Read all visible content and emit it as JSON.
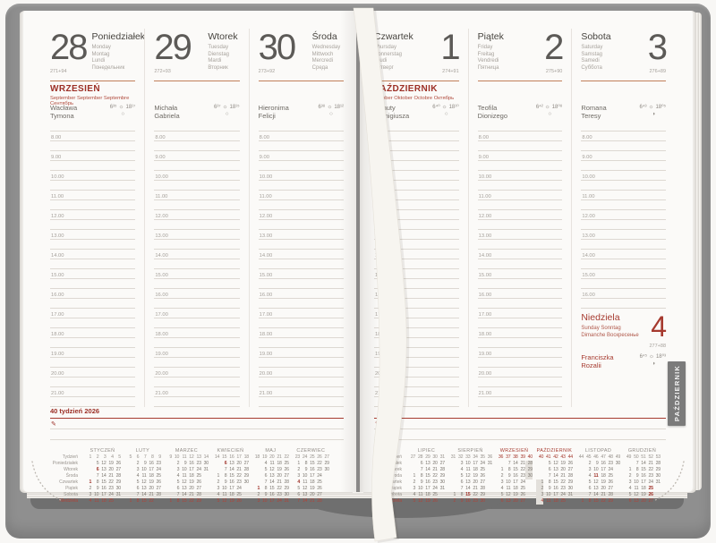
{
  "colors": {
    "accent_red": "#a63a2f",
    "header_red": "#9c2f26",
    "orange_rule": "#c2805a",
    "tab_gray": "#7b7b7b",
    "highlight": "#e3e0db"
  },
  "sun_icon": "☼",
  "pen_icon": "✎",
  "hours_full": [
    "8.00",
    "9.00",
    "10.00",
    "11.00",
    "12.00",
    "13.00",
    "14.00",
    "15.00",
    "16.00",
    "17.00",
    "18.00",
    "19.00",
    "20.00",
    "21.00"
  ],
  "hours_sat": [
    "8.00",
    "9.00",
    "10.00",
    "11.00",
    "12.00",
    "13.00",
    "14.00",
    "15.00",
    "16.00"
  ],
  "side_tab": {
    "label": "PAŹDZIERNIK"
  },
  "left_page": {
    "month_header": {
      "title": "WRZESIEŃ",
      "subtitle": "September  September  Septembre  Сентябрь"
    },
    "week_label": "40 tydzień 2026",
    "columns": [
      {
        "day": "28",
        "name": "Poniedziałek",
        "langs": [
          "Monday",
          "Montag",
          "Lundi",
          "Понедельник"
        ],
        "ordinal": "271+94",
        "namedays": [
          "Wacława",
          "Tymona"
        ],
        "sunrise": "6³⁵",
        "sunset": "18¹⁷",
        "moon": "○"
      },
      {
        "day": "29",
        "name": "Wtorek",
        "langs": [
          "Tuesday",
          "Dienstag",
          "Mardi",
          "Вторник"
        ],
        "ordinal": "272+93",
        "namedays": [
          "Michała",
          "Gabriela"
        ],
        "sunrise": "6³⁷",
        "sunset": "18¹⁵",
        "moon": "○"
      },
      {
        "day": "30",
        "name": "Środa",
        "langs": [
          "Wednesday",
          "Mittwoch",
          "Mercredi",
          "Среда"
        ],
        "ordinal": "273+92",
        "namedays": [
          "Hieronima",
          "Felicji"
        ],
        "sunrise": "6³⁸",
        "sunset": "18¹²",
        "moon": "○"
      }
    ]
  },
  "right_page": {
    "month_header": {
      "title": "PAŹDZIERNIK",
      "subtitle": "October  Oktober  Octobre  Октябрь"
    },
    "columns": [
      {
        "day": "1",
        "name": "Czwartek",
        "langs": [
          "Thursday",
          "Donnerstag",
          "Jeudi",
          "Четверг"
        ],
        "ordinal": "274+91",
        "namedays": [
          "Danuty",
          "Remigiusza"
        ],
        "sunrise": "6⁴⁰",
        "sunset": "18¹⁰",
        "moon": "○"
      },
      {
        "day": "2",
        "name": "Piątek",
        "langs": [
          "Friday",
          "Freitag",
          "Vendredi",
          "Пятница"
        ],
        "ordinal": "275+90",
        "namedays": [
          "Teofila",
          "Dionizego"
        ],
        "sunrise": "6⁴²",
        "sunset": "18⁰⁸",
        "moon": "○"
      },
      {
        "day": "3",
        "name": "Sobota",
        "langs": [
          "Saturday",
          "Samstag",
          "Samedi",
          "Суббота"
        ],
        "ordinal": "276+89",
        "namedays": [
          "Romana",
          "Teresy"
        ],
        "sunrise": "6⁴³",
        "sunset": "18⁰⁵",
        "moon": "◑"
      }
    ],
    "sunday": {
      "day": "4",
      "name": "Niedziela",
      "langs": [
        "Sunday Sonntag",
        "Dimanche Воскресенье"
      ],
      "ordinal": "277+88",
      "namedays": [
        "Franciszka",
        "Rozalii"
      ],
      "sunrise": "6⁴⁵",
      "sunset": "18⁰³",
      "moon": "◑"
    }
  },
  "mini_calendar": {
    "row_labels": [
      "Tydzień",
      "Poniedziałek",
      "Wtorek",
      "Środa",
      "Czwartek",
      "Piątek",
      "Sobota",
      "Niedziela"
    ],
    "left_months": [
      {
        "name": "STYCZEŃ",
        "accent": false,
        "weeks": [
          "1",
          "2",
          "3",
          "4",
          "5"
        ],
        "rows": [
          [
            "",
            "5",
            "12",
            "19",
            "26"
          ],
          [
            "",
            "6*",
            "13",
            "20",
            "27"
          ],
          [
            "",
            "7",
            "14",
            "21",
            "28"
          ],
          [
            "1*",
            "8",
            "15",
            "22",
            "29"
          ],
          [
            "2",
            "9",
            "16",
            "23",
            "30"
          ],
          [
            "3",
            "10",
            "17",
            "24",
            "31"
          ],
          [
            "4",
            "11",
            "18",
            "25",
            ""
          ]
        ]
      },
      {
        "name": "LUTY",
        "accent": false,
        "weeks": [
          "5",
          "6",
          "7",
          "8",
          "9"
        ],
        "rows": [
          [
            "",
            "2",
            "9",
            "16",
            "23"
          ],
          [
            "",
            "3",
            "10",
            "17",
            "24"
          ],
          [
            "",
            "4",
            "11",
            "18",
            "25"
          ],
          [
            "",
            "5",
            "12",
            "19",
            "26"
          ],
          [
            "",
            "6",
            "13",
            "20",
            "27"
          ],
          [
            "",
            "7",
            "14",
            "21",
            "28"
          ],
          [
            "1",
            "8",
            "15",
            "22",
            ""
          ]
        ]
      },
      {
        "name": "MARZEC",
        "accent": false,
        "weeks": [
          "9",
          "10",
          "11",
          "12",
          "13",
          "14"
        ],
        "rows": [
          [
            "",
            "2",
            "9",
            "16",
            "23",
            "30"
          ],
          [
            "",
            "3",
            "10",
            "17",
            "24",
            "31"
          ],
          [
            "",
            "4",
            "11",
            "18",
            "25",
            ""
          ],
          [
            "",
            "5",
            "12",
            "19",
            "26",
            ""
          ],
          [
            "",
            "6",
            "13",
            "20",
            "27",
            ""
          ],
          [
            "",
            "7",
            "14",
            "21",
            "28",
            ""
          ],
          [
            "1",
            "8",
            "15",
            "22",
            "29",
            ""
          ]
        ]
      },
      {
        "name": "KWIECIEŃ",
        "accent": false,
        "weeks": [
          "14",
          "15",
          "16",
          "17",
          "18"
        ],
        "rows": [
          [
            "",
            "6*",
            "13",
            "20",
            "27"
          ],
          [
            "",
            "7",
            "14",
            "21",
            "28"
          ],
          [
            "1",
            "8",
            "15",
            "22",
            "29"
          ],
          [
            "2",
            "9",
            "16",
            "23",
            "30"
          ],
          [
            "3",
            "10",
            "17",
            "24",
            ""
          ],
          [
            "4",
            "11",
            "18",
            "25",
            ""
          ],
          [
            "5",
            "12",
            "19",
            "26",
            ""
          ]
        ]
      },
      {
        "name": "MAJ",
        "accent": false,
        "weeks": [
          "18",
          "19",
          "20",
          "21",
          "22"
        ],
        "rows": [
          [
            "",
            "4",
            "11",
            "18",
            "25"
          ],
          [
            "",
            "5",
            "12",
            "19",
            "26"
          ],
          [
            "",
            "6",
            "13",
            "20",
            "27"
          ],
          [
            "",
            "7",
            "14",
            "21",
            "28"
          ],
          [
            "1*",
            "8",
            "15",
            "22",
            "29"
          ],
          [
            "2",
            "9",
            "16",
            "23",
            "30"
          ],
          [
            "3",
            "10",
            "17",
            "24",
            "31"
          ]
        ]
      },
      {
        "name": "CZERWIEC",
        "accent": false,
        "weeks": [
          "23",
          "24",
          "25",
          "26",
          "27"
        ],
        "rows": [
          [
            "1",
            "8",
            "15",
            "22",
            "29"
          ],
          [
            "2",
            "9",
            "16",
            "23",
            "30"
          ],
          [
            "3",
            "10",
            "17",
            "24",
            ""
          ],
          [
            "4*",
            "11",
            "18",
            "25",
            ""
          ],
          [
            "5",
            "12",
            "19",
            "26",
            ""
          ],
          [
            "6",
            "13",
            "20",
            "27",
            ""
          ],
          [
            "7",
            "14",
            "21",
            "28",
            ""
          ]
        ]
      }
    ],
    "right_months": [
      {
        "name": "LIPIEC",
        "accent": false,
        "weeks": [
          "27",
          "28",
          "29",
          "30",
          "31"
        ],
        "rows": [
          [
            "",
            "6",
            "13",
            "20",
            "27"
          ],
          [
            "",
            "7",
            "14",
            "21",
            "28"
          ],
          [
            "1",
            "8",
            "15",
            "22",
            "29"
          ],
          [
            "2",
            "9",
            "16",
            "23",
            "30"
          ],
          [
            "3",
            "10",
            "17",
            "24",
            "31"
          ],
          [
            "4",
            "11",
            "18",
            "25",
            ""
          ],
          [
            "5",
            "12",
            "19",
            "26",
            ""
          ]
        ]
      },
      {
        "name": "SIERPIEŃ",
        "accent": false,
        "weeks": [
          "31",
          "32",
          "33",
          "34",
          "35",
          "36"
        ],
        "rows": [
          [
            "",
            "3",
            "10",
            "17",
            "24",
            "31"
          ],
          [
            "",
            "4",
            "11",
            "18",
            "25",
            ""
          ],
          [
            "",
            "5",
            "12",
            "19",
            "26",
            ""
          ],
          [
            "",
            "6",
            "13",
            "20",
            "27",
            ""
          ],
          [
            "",
            "7",
            "14",
            "21",
            "28",
            ""
          ],
          [
            "1",
            "8",
            "15*",
            "22",
            "29",
            ""
          ],
          [
            "2",
            "9",
            "16",
            "23",
            "30",
            ""
          ]
        ]
      },
      {
        "name": "WRZESIEŃ",
        "accent": true,
        "weeks": [
          "36",
          "37",
          "38",
          "39",
          "40"
        ],
        "rows": [
          [
            "",
            "7",
            "14",
            "21",
            "28#"
          ],
          [
            "1",
            "8",
            "15",
            "22",
            "29#"
          ],
          [
            "2",
            "9",
            "16",
            "23",
            "30#"
          ],
          [
            "3",
            "10",
            "17",
            "24",
            ""
          ],
          [
            "4",
            "11",
            "18",
            "25",
            ""
          ],
          [
            "5",
            "12",
            "19",
            "26",
            ""
          ],
          [
            "6",
            "13",
            "20",
            "27",
            ""
          ]
        ]
      },
      {
        "name": "PAŹDZIERNIK",
        "accent": true,
        "weeks": [
          "40",
          "41",
          "42",
          "43",
          "44"
        ],
        "rows": [
          [
            "",
            "5",
            "12",
            "19",
            "26"
          ],
          [
            "",
            "6",
            "13",
            "20",
            "27"
          ],
          [
            "",
            "7",
            "14",
            "21",
            "28"
          ],
          [
            "1#",
            "8",
            "15",
            "22",
            "29"
          ],
          [
            "2#",
            "9",
            "16",
            "23",
            "30"
          ],
          [
            "3#",
            "10",
            "17",
            "24",
            "31"
          ],
          [
            "4#",
            "11",
            "18",
            "25",
            ""
          ]
        ]
      },
      {
        "name": "LISTOPAD",
        "accent": false,
        "weeks": [
          "44",
          "45",
          "46",
          "47",
          "48",
          "49"
        ],
        "rows": [
          [
            "",
            "2",
            "9",
            "16",
            "23",
            "30"
          ],
          [
            "",
            "3",
            "10",
            "17",
            "24",
            ""
          ],
          [
            "",
            "4",
            "11*",
            "18",
            "25",
            ""
          ],
          [
            "",
            "5",
            "12",
            "19",
            "26",
            ""
          ],
          [
            "",
            "6",
            "13",
            "20",
            "27",
            ""
          ],
          [
            "",
            "7",
            "14",
            "21",
            "28",
            ""
          ],
          [
            "1",
            "8",
            "15",
            "22",
            "29",
            ""
          ]
        ]
      },
      {
        "name": "GRUDZIEŃ",
        "accent": false,
        "weeks": [
          "49",
          "50",
          "51",
          "52",
          "53"
        ],
        "rows": [
          [
            "",
            "7",
            "14",
            "21",
            "28"
          ],
          [
            "1",
            "8",
            "15",
            "22",
            "29"
          ],
          [
            "2",
            "9",
            "16",
            "23",
            "30"
          ],
          [
            "3",
            "10",
            "17",
            "24",
            "31"
          ],
          [
            "4",
            "11",
            "18",
            "25*",
            ""
          ],
          [
            "5",
            "12",
            "19",
            "26*",
            ""
          ],
          [
            "6",
            "13",
            "20",
            "27",
            ""
          ]
        ]
      }
    ]
  }
}
